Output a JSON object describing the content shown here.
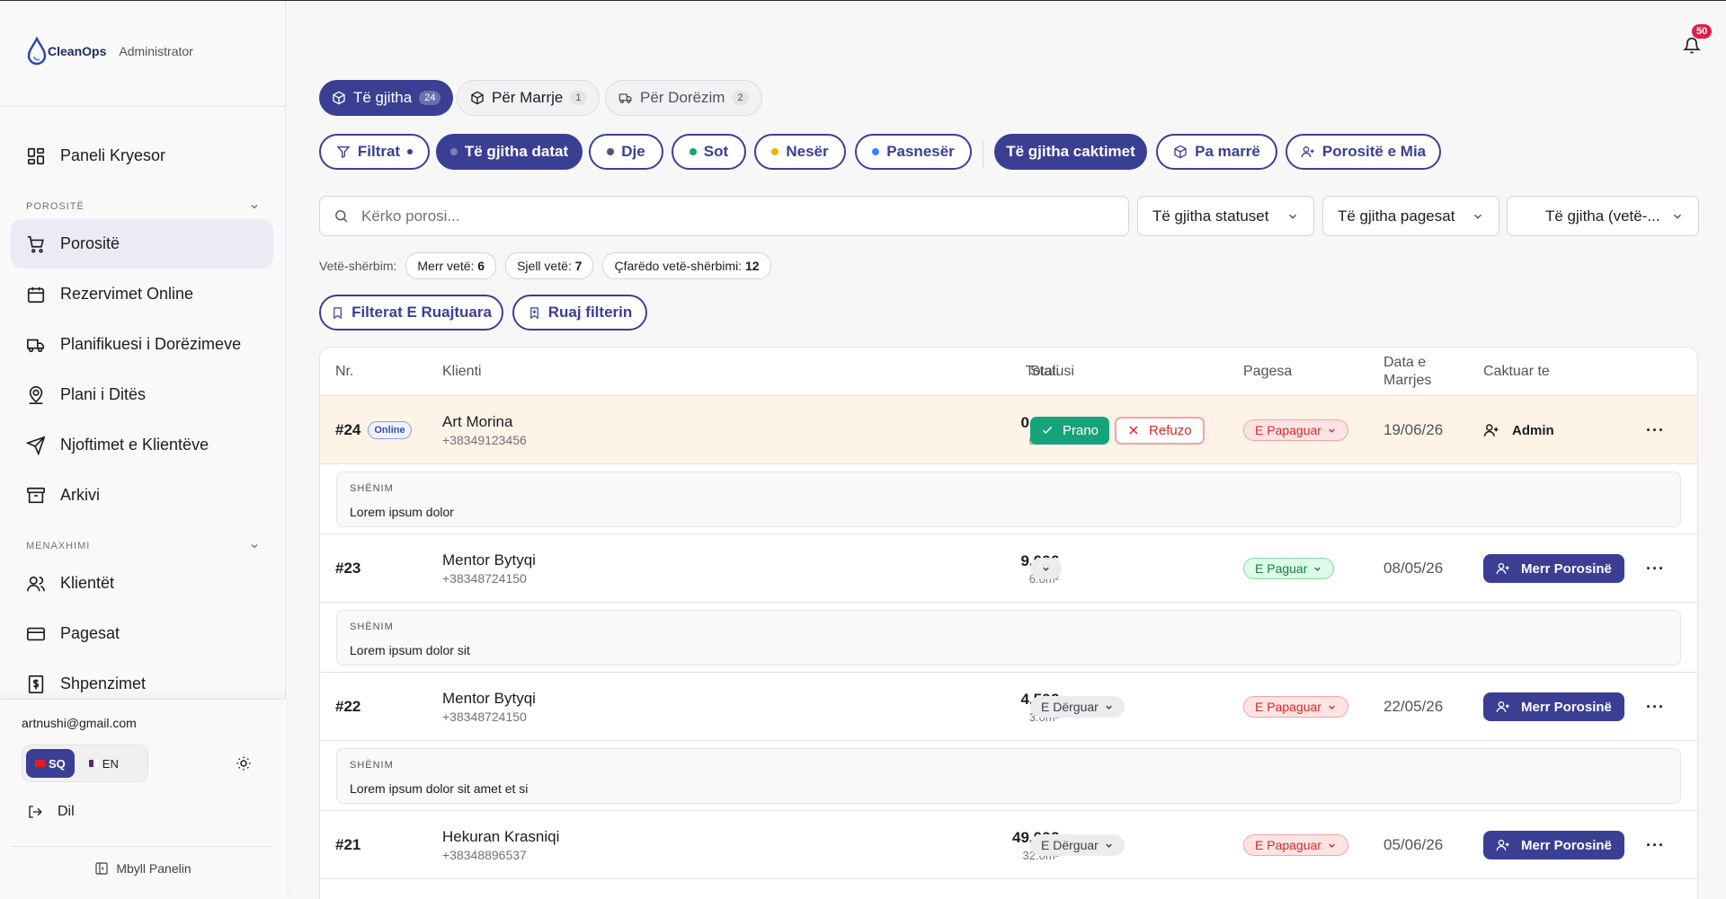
{
  "brand": {
    "logo_text": "CleanOps",
    "role": "Administrator"
  },
  "nav": {
    "dashboard": "Paneli Kryesor",
    "section_orders": "POROSITË",
    "orders": "Porositë",
    "online_bookings": "Rezervimet Online",
    "delivery_planner": "Planifikuesi i Dorëzimeve",
    "day_plan": "Plani i Ditës",
    "client_notifications": "Njoftimet e Klientëve",
    "archive": "Arkivi",
    "section_management": "MENAXHIMI",
    "clients": "Klientët",
    "payments": "Pagesat",
    "expenses": "Shpenzimet"
  },
  "account": {
    "email": "artnushi@gmail.com",
    "lang_sq": "SQ",
    "lang_en": "EN",
    "logout": "Dil",
    "close_panel": "Mbyll Panelin"
  },
  "notifications": {
    "count": "50"
  },
  "tabs": [
    {
      "label": "Të gjitha",
      "count": "24"
    },
    {
      "label": "Për Marrje",
      "count": "1"
    },
    {
      "label": "Për Dorëzim",
      "count": "2"
    }
  ],
  "filters": {
    "filters": "Filtrat",
    "all_dates": "Të gjitha datat",
    "yesterday": "Dje",
    "today": "Sot",
    "tomorrow": "Nesër",
    "day_after": "Pasnesër",
    "all_assignments": "Të gjitha caktimet",
    "unassigned": "Pa marrë",
    "my_orders": "Porositë e Mia",
    "colors": {
      "yesterday": "#52566e",
      "today": "#16a37a",
      "tomorrow": "#eab308",
      "day_after": "#3b82f6"
    }
  },
  "search": {
    "placeholder": "Kërko porosi..."
  },
  "selects": {
    "status": "Të gjitha statuset",
    "payment": "Të gjitha pagesat",
    "self": "Të gjitha (vetë-..."
  },
  "self_service": {
    "label": "Vetë-shërbim:",
    "pickup_label": "Merr vetë:",
    "pickup": "6",
    "drop_label": "Sjell vetë:",
    "drop": "7",
    "any_label": "Çfarëdo vetë-shërbimi:",
    "any": "12"
  },
  "saved": {
    "saved_filters": "Filterat E Ruajtuara",
    "save_filter": "Ruaj filterin"
  },
  "table": {
    "headers": {
      "nr": "Nr.",
      "client": "Klienti",
      "total": "Totali",
      "status": "Statusi",
      "payment": "Pagesa",
      "date_line1": "Data e",
      "date_line2": "Marrjes",
      "assigned": "Caktuar te"
    },
    "note_label": "SHËNIM",
    "accept": "Prano",
    "reject": "Refuzo",
    "take": "Merr Porosinë",
    "online": "Online",
    "rows": [
      {
        "nr": "#24",
        "client": "Art Morina",
        "phone": "+38349123456",
        "total": "0.00€",
        "area": "0.0m²",
        "payment": "E Papaguar",
        "date": "19/06/26",
        "assigned": "Admin",
        "note": "Lorem ipsum dolor"
      },
      {
        "nr": "#23",
        "client": "Mentor Bytyqi",
        "phone": "+38348724150",
        "total": "9.00€",
        "area": "6.0m²",
        "payment": "E Paguar",
        "date": "08/05/26",
        "note": "Lorem ipsum dolor sit"
      },
      {
        "nr": "#22",
        "client": "Mentor Bytyqi",
        "phone": "+38348724150",
        "total": "4.50€",
        "area": "3.0m²",
        "status": "E Dërguar",
        "payment": "E Papaguar",
        "date": "22/05/26",
        "note": "Lorem ipsum dolor sit amet et si"
      },
      {
        "nr": "#21",
        "client": "Hekuran Krasniqi",
        "phone": "+38348896537",
        "total": "49.00€",
        "area": "32.0m²",
        "status": "E Dërguar",
        "payment": "E Papaguar",
        "date": "05/06/26"
      }
    ]
  }
}
